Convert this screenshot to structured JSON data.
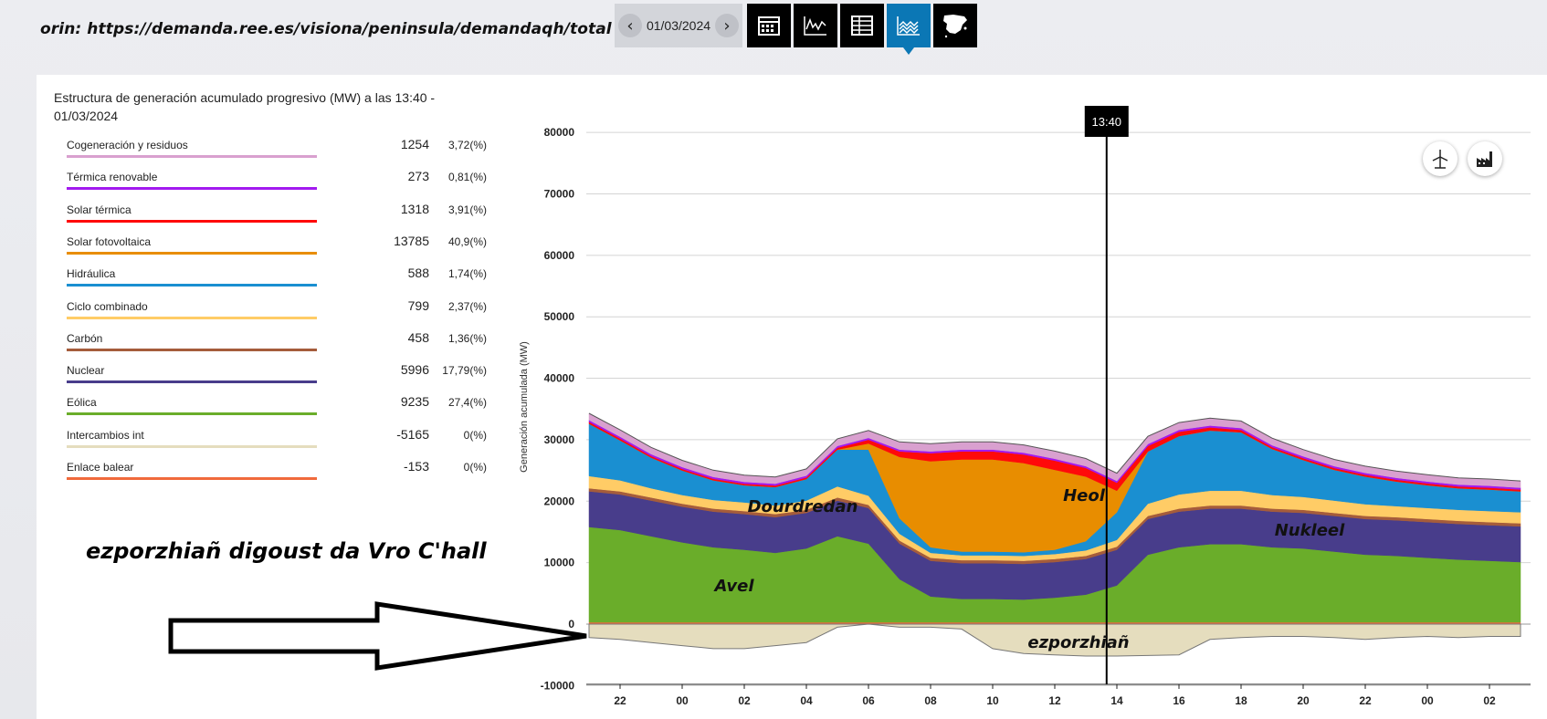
{
  "source_note": "orin: https://demanda.ree.es/visiona/peninsula/demandaqh/total",
  "toolbar": {
    "date": "01/03/2024",
    "views": [
      {
        "name": "calendar-icon",
        "active": false
      },
      {
        "name": "line-chart-icon",
        "active": false
      },
      {
        "name": "table-icon",
        "active": false
      },
      {
        "name": "stacked-area-icon",
        "active": true
      },
      {
        "name": "spain-map-icon",
        "active": false
      }
    ]
  },
  "legend": {
    "title": "Estructura de generación acumulado progresivo (MW) a las 13:40 - 01/03/2024",
    "items": [
      {
        "name": "Cogeneración y residuos",
        "value": "1254",
        "pct": "3,72(%)",
        "color": "#d9a0cf"
      },
      {
        "name": "Térmica renovable",
        "value": "273",
        "pct": "0,81(%)",
        "color": "#a21aef"
      },
      {
        "name": "Solar térmica",
        "value": "1318",
        "pct": "3,91(%)",
        "color": "#ff0a0a"
      },
      {
        "name": "Solar fotovoltaica",
        "value": "13785",
        "pct": "40,9(%)",
        "color": "#e88d00"
      },
      {
        "name": "Hidráulica",
        "value": "588",
        "pct": "1,74(%)",
        "color": "#1a8fd1"
      },
      {
        "name": "Ciclo combinado",
        "value": "799",
        "pct": "2,37(%)",
        "color": "#ffcc66"
      },
      {
        "name": "Carbón",
        "value": "458",
        "pct": "1,36(%)",
        "color": "#a55c3b"
      },
      {
        "name": "Nuclear",
        "value": "5996",
        "pct": "17,79(%)",
        "color": "#483d8b"
      },
      {
        "name": "Eólica",
        "value": "9235",
        "pct": "27,4(%)",
        "color": "#6aad2a"
      },
      {
        "name": "Intercambios int",
        "value": "-5165",
        "pct": "0(%)",
        "color": "#e5ddbe"
      },
      {
        "name": "Enlace balear",
        "value": "-153",
        "pct": "0(%)",
        "color": "#f06a3c"
      }
    ]
  },
  "annotation": "ezporzhiañ digoust da Vro C'hall",
  "cursor_label": "13:40",
  "chart_icons": [
    "wind-turbine-icon",
    "factory-icon"
  ],
  "chart_data": {
    "type": "area",
    "stacked": true,
    "ylabel": "Generación acumulada (MW)",
    "ylim": [
      -10000,
      80000
    ],
    "yticks": [
      "80000",
      "70000",
      "60000",
      "50000",
      "40000",
      "30000",
      "20000",
      "10000",
      "0",
      "-10000"
    ],
    "xticks": [
      "22",
      "00",
      "02",
      "04",
      "06",
      "08",
      "10",
      "12",
      "14",
      "16",
      "18",
      "20",
      "22",
      "00",
      "02"
    ],
    "x_hours": [
      21,
      22,
      23,
      24,
      25,
      26,
      27,
      28,
      29,
      30,
      31,
      32,
      33,
      34,
      35,
      36,
      37,
      38,
      39,
      40,
      41,
      42,
      43,
      44,
      45,
      46,
      47,
      48,
      49,
      50,
      51
    ],
    "cursor_hour": 37.67,
    "grid": true,
    "series": [
      {
        "name": "Intercambios int",
        "color": "#e5ddbe",
        "values": [
          -2200,
          -2500,
          -3000,
          -3500,
          -4000,
          -4000,
          -3500,
          -3000,
          -500,
          0,
          -500,
          -500,
          -800,
          -4000,
          -4800,
          -5000,
          -5200,
          -5200,
          -5100,
          -5000,
          -2500,
          -2200,
          -2000,
          -2000,
          -2200,
          -2500,
          -2200,
          -2000,
          -2200,
          -2000,
          -2000
        ]
      },
      {
        "name": "Enlace balear",
        "color": "#f06a3c",
        "values": [
          300,
          300,
          300,
          300,
          300,
          300,
          300,
          300,
          300,
          300,
          300,
          300,
          300,
          300,
          300,
          300,
          300,
          300,
          300,
          300,
          300,
          300,
          300,
          300,
          300,
          300,
          300,
          300,
          300,
          300,
          300
        ]
      },
      {
        "name": "Eólica",
        "color": "#6aad2a",
        "values": [
          15500,
          15000,
          14000,
          13000,
          12200,
          11800,
          11300,
          12000,
          14000,
          12800,
          7000,
          4200,
          3800,
          3800,
          3700,
          4000,
          4500,
          6000,
          11000,
          12200,
          12700,
          12700,
          12200,
          12000,
          11500,
          11000,
          10800,
          10500,
          10200,
          10000,
          9800
        ]
      },
      {
        "name": "Nuclear",
        "color": "#483d8b",
        "values": [
          5800,
          5800,
          5800,
          5800,
          5800,
          5800,
          5800,
          5800,
          5800,
          5800,
          5800,
          5800,
          5800,
          5800,
          5800,
          5800,
          5800,
          5800,
          5800,
          5800,
          5800,
          5800,
          5800,
          5800,
          5800,
          5800,
          5800,
          5800,
          5800,
          5800,
          5800
        ]
      },
      {
        "name": "Carbón",
        "color": "#a55c3b",
        "values": [
          500,
          500,
          500,
          500,
          500,
          500,
          500,
          500,
          500,
          500,
          500,
          500,
          500,
          500,
          500,
          500,
          500,
          500,
          500,
          500,
          500,
          500,
          500,
          500,
          500,
          500,
          500,
          500,
          500,
          500,
          500
        ]
      },
      {
        "name": "Ciclo combinado",
        "color": "#ffcc66",
        "values": [
          2000,
          1800,
          1500,
          1400,
          1400,
          1400,
          1400,
          1500,
          1800,
          1500,
          1100,
          800,
          800,
          800,
          800,
          800,
          900,
          1100,
          2000,
          2300,
          2400,
          2400,
          2200,
          2100,
          2000,
          1900,
          1800,
          1800,
          1800,
          1800,
          1800
        ]
      },
      {
        "name": "Hidráulica",
        "color": "#1a8fd1",
        "values": [
          8500,
          6500,
          5000,
          4000,
          3200,
          2800,
          3000,
          3500,
          6000,
          7500,
          2500,
          900,
          600,
          600,
          600,
          700,
          1500,
          4500,
          8500,
          9500,
          9800,
          9500,
          7500,
          6000,
          5000,
          4500,
          4000,
          3700,
          3500,
          3500,
          3400
        ]
      },
      {
        "name": "Solar fotovoltaica",
        "color": "#e88d00",
        "values": [
          0,
          0,
          0,
          0,
          0,
          0,
          0,
          0,
          0,
          1000,
          10000,
          14000,
          15000,
          15000,
          14500,
          13000,
          10500,
          3500,
          0,
          0,
          0,
          0,
          0,
          0,
          0,
          0,
          0,
          0,
          0,
          0,
          0
        ]
      },
      {
        "name": "Solar térmica",
        "color": "#ff0a0a",
        "values": [
          300,
          300,
          250,
          250,
          250,
          250,
          250,
          250,
          300,
          600,
          900,
          1300,
          1300,
          1300,
          1400,
          1500,
          1400,
          1300,
          900,
          700,
          500,
          400,
          300,
          300,
          300,
          300,
          300,
          300,
          300,
          300,
          300
        ]
      },
      {
        "name": "Térmica renovable",
        "color": "#a21aef",
        "values": [
          300,
          300,
          300,
          300,
          300,
          300,
          300,
          300,
          300,
          300,
          300,
          300,
          300,
          300,
          300,
          300,
          300,
          300,
          300,
          300,
          300,
          300,
          300,
          300,
          300,
          300,
          300,
          300,
          300,
          300,
          300
        ]
      },
      {
        "name": "Cogeneración y residuos",
        "color": "#d9a0cf",
        "values": [
          1100,
          1100,
          1100,
          1100,
          1100,
          1100,
          1100,
          1100,
          1150,
          1200,
          1250,
          1250,
          1250,
          1250,
          1250,
          1250,
          1250,
          1250,
          1250,
          1200,
          1200,
          1150,
          1150,
          1100,
          1100,
          1100,
          1100,
          1100,
          1100,
          1100,
          1100
        ]
      }
    ],
    "area_labels": [
      {
        "text": "Heol"
      },
      {
        "text": "Dourdredan"
      },
      {
        "text": "Nukleel"
      },
      {
        "text": "Avel"
      },
      {
        "text": "ezporzhiañ"
      }
    ]
  }
}
